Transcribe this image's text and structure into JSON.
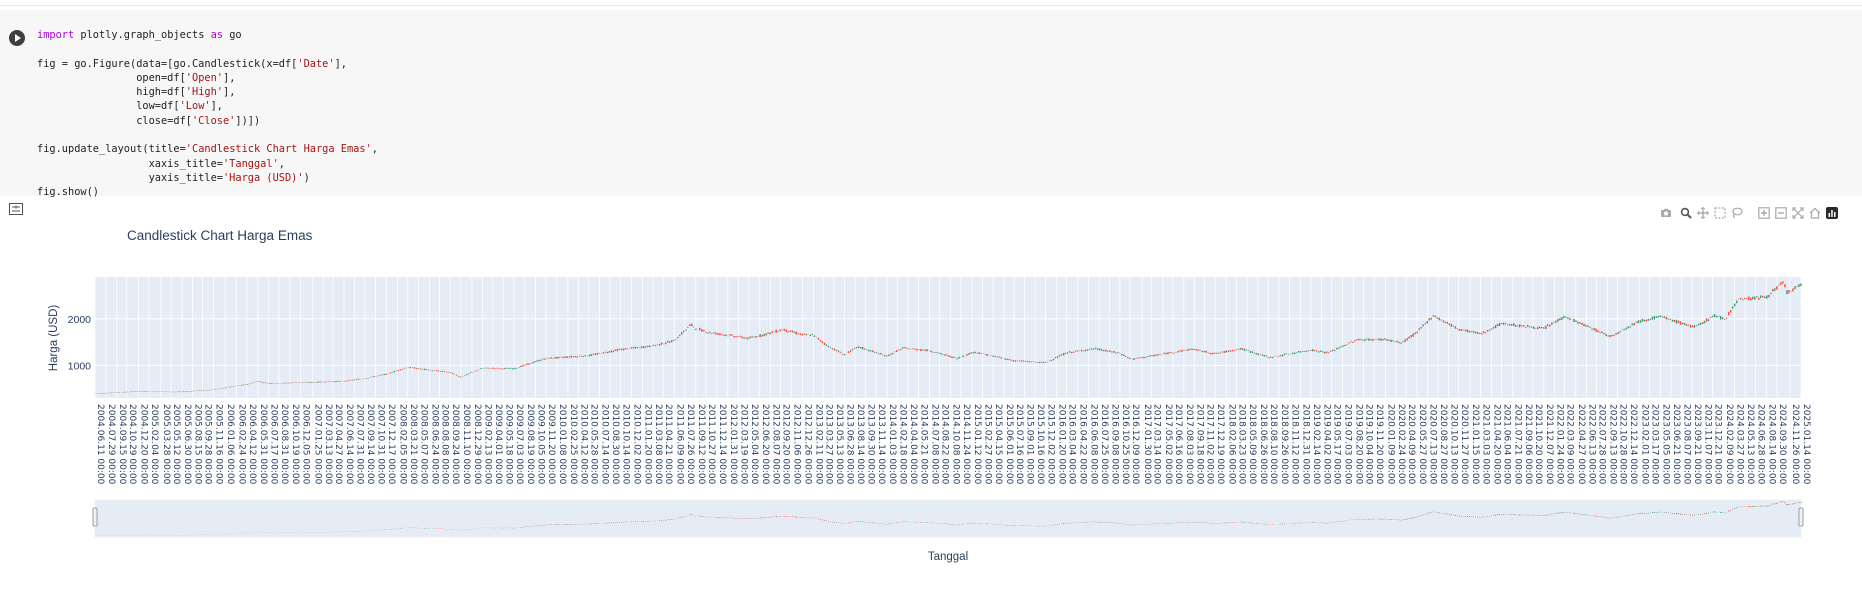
{
  "code": {
    "lines": [
      [
        {
          "t": "import",
          "c": "kw"
        },
        {
          "t": " plotly.graph_objects "
        },
        {
          "t": "as",
          "c": "kw"
        },
        {
          "t": " go"
        }
      ],
      [],
      [
        {
          "t": "fig = go.Figure(data=[go.Candlestick(x=df["
        },
        {
          "t": "'Date'",
          "c": "str"
        },
        {
          "t": "],"
        }
      ],
      [
        {
          "t": "                open=df["
        },
        {
          "t": "'Open'",
          "c": "str"
        },
        {
          "t": "],"
        }
      ],
      [
        {
          "t": "                high=df["
        },
        {
          "t": "'High'",
          "c": "str"
        },
        {
          "t": "],"
        }
      ],
      [
        {
          "t": "                low=df["
        },
        {
          "t": "'Low'",
          "c": "str"
        },
        {
          "t": "],"
        }
      ],
      [
        {
          "t": "                close=df["
        },
        {
          "t": "'Close'",
          "c": "str"
        },
        {
          "t": "])])"
        }
      ],
      [],
      [
        {
          "t": "fig.update_layout(title="
        },
        {
          "t": "'Candlestick Chart Harga Emas'",
          "c": "str"
        },
        {
          "t": ","
        }
      ],
      [
        {
          "t": "                  xaxis_title="
        },
        {
          "t": "'Tanggal'",
          "c": "str"
        },
        {
          "t": ","
        }
      ],
      [
        {
          "t": "                  yaxis_title="
        },
        {
          "t": "'Harga (USD)'",
          "c": "str"
        },
        {
          "t": ")"
        }
      ],
      [
        {
          "t": "fig.show()"
        }
      ]
    ]
  },
  "toolbar": {
    "icons": [
      "camera-icon",
      "zoom-icon",
      "pan-icon",
      "box-select-icon",
      "lasso-select-icon",
      "zoom-in-icon",
      "zoom-out-icon",
      "autoscale-icon",
      "reset-axes-icon",
      "plotly-logo-icon"
    ]
  },
  "chart_data": {
    "type": "candlestick",
    "title": "Candlestick Chart Harga Emas",
    "xlabel": "Tanggal",
    "ylabel": "Harga (USD)",
    "ylim": [
      300,
      2900
    ],
    "yticks": [
      1000,
      2000
    ],
    "x_start": "2004-06-11",
    "x_end": "2025-01-14",
    "ticks": [
      "2004.06.11 00:00",
      "2004.07.29 00:00",
      "2004.09.15 00:00",
      "2004.10.29 00:00",
      "2004.12.20 00:00",
      "2005.02.04 00:00",
      "2005.03.28 00:00",
      "2005.05.12 00:00",
      "2005.06.30 00:00",
      "2005.08.15 00:00",
      "2005.09.28 00:00",
      "2005.11.16 00:00",
      "2006.01.06 00:00",
      "2006.02.24 00:00",
      "2006.04.12 00:00",
      "2006.05.31 00:00",
      "2006.07.17 00:00",
      "2006.08.31 00:00",
      "2006.10.19 00:00",
      "2006.12.05 00:00",
      "2007.01.25 00:00",
      "2007.03.13 00:00",
      "2007.04.27 00:00",
      "2007.06.14 00:00",
      "2007.07.31 00:00",
      "2007.09.14 00:00",
      "2007.10.31 00:00",
      "2007.12.17 00:00",
      "2008.02.05 00:00",
      "2008.03.21 00:00",
      "2008.05.07 00:00",
      "2008.06.24 00:00",
      "2008.08.08 00:00",
      "2008.09.24 00:00",
      "2008.11.10 00:00",
      "2008.12.29 00:00",
      "2009.02.13 00:00",
      "2009.04.01 00:00",
      "2009.05.18 00:00",
      "2009.07.03 00:00",
      "2009.08.19 00:00",
      "2009.10.05 00:00",
      "2009.11.20 00:00",
      "2010.01.08 00:00",
      "2010.02.25 00:00",
      "2010.04.12 00:00",
      "2010.05.28 00:00",
      "2010.07.14 00:00",
      "2010.08.30 00:00",
      "2010.10.14 00:00",
      "2010.12.02 00:00",
      "2011.01.20 00:00",
      "2011.03.08 00:00",
      "2011.04.21 00:00",
      "2011.06.09 00:00",
      "2011.07.26 00:00",
      "2011.09.12 00:00",
      "2011.10.27 00:00",
      "2011.12.14 00:00",
      "2012.01.31 00:00",
      "2012.03.19 00:00",
      "2012.05.04 00:00",
      "2012.06.20 00:00",
      "2012.08.07 00:00",
      "2012.09.20 00:00",
      "2012.11.06 00:00",
      "2012.12.26 00:00",
      "2013.02.11 00:00",
      "2013.03.27 00:00",
      "2013.05.13 00:00",
      "2013.06.28 00:00",
      "2013.08.14 00:00",
      "2013.09.30 00:00",
      "2013.11.14 00:00",
      "2014.01.03 00:00",
      "2014.02.18 00:00",
      "2014.04.04 00:00",
      "2014.05.21 00:00",
      "2014.07.08 00:00",
      "2014.08.22 00:00",
      "2014.10.08 00:00",
      "2014.11.24 00:00",
      "2015.01.12 00:00",
      "2015.02.27 00:00",
      "2015.04.15 00:00",
      "2015.06.01 00:00",
      "2015.07.16 00:00",
      "2015.09.01 00:00",
      "2015.10.16 00:00",
      "2015.12.02 00:00",
      "2016.01.20 00:00",
      "2016.03.04 00:00",
      "2016.04.22 00:00",
      "2016.06.08 00:00",
      "2016.07.25 00:00",
      "2016.09.08 00:00",
      "2016.10.25 00:00",
      "2016.12.09 00:00",
      "2017.01.30 00:00",
      "2017.03.14 00:00",
      "2017.05.02 00:00",
      "2017.06.16 00:00",
      "2017.08.03 00:00",
      "2017.09.18 00:00",
      "2017.11.02 00:00",
      "2017.12.19 00:00",
      "2018.02.06 00:00",
      "2018.03.23 00:00",
      "2018.05.09 00:00",
      "2018.06.26 00:00",
      "2018.08.10 00:00",
      "2018.09.26 00:00",
      "2018.11.12 00:00",
      "2018.12.31 00:00",
      "2019.02.14 00:00",
      "2019.04.02 00:00",
      "2019.05.17 00:00",
      "2019.07.03 00:00",
      "2019.08.20 00:00",
      "2019.10.04 00:00",
      "2019.11.20 00:00",
      "2020.01.09 00:00",
      "2020.02.24 00:00",
      "2020.04.09 00:00",
      "2020.05.27 00:00",
      "2020.07.13 00:00",
      "2020.08.27 00:00",
      "2020.10.13 00:00",
      "2020.11.27 00:00",
      "2021.01.15 00:00",
      "2021.03.03 00:00",
      "2021.04.20 00:00",
      "2021.06.04 00:00",
      "2021.07.21 00:00",
      "2021.09.06 00:00",
      "2021.10.20 00:00",
      "2021.12.07 00:00",
      "2022.01.24 00:00",
      "2022.03.09 00:00",
      "2022.04.27 00:00",
      "2022.06.13 00:00",
      "2022.07.28 00:00",
      "2022.09.13 00:00",
      "2022.10.28 00:00",
      "2022.12.14 00:00",
      "2023.02.01 00:00",
      "2023.03.17 00:00",
      "2023.05.05 00:00",
      "2023.06.21 00:00",
      "2023.08.07 00:00",
      "2023.09.21 00:00",
      "2023.11.07 00:00",
      "2023.12.21 00:00",
      "2024.02.09 00:00",
      "2024.03.27 00:00",
      "2024.05.13 00:00",
      "2024.06.28 00:00",
      "2024.08.14 00:00",
      "2024.09.30 00:00",
      "2024.11.26 00:00",
      "2025.01.14 00:00"
    ],
    "series": [
      {
        "points": [
          [
            "2004-06-11",
            392
          ],
          [
            "2004-12-20",
            440
          ],
          [
            "2005-06-30",
            430
          ],
          [
            "2005-11-16",
            480
          ],
          [
            "2006-04-12",
            590
          ],
          [
            "2006-05-31",
            660
          ],
          [
            "2006-07-17",
            610
          ],
          [
            "2006-12-05",
            630
          ],
          [
            "2007-06-14",
            660
          ],
          [
            "2007-09-14",
            720
          ],
          [
            "2007-12-17",
            810
          ],
          [
            "2008-03-21",
            960
          ],
          [
            "2008-06-24",
            900
          ],
          [
            "2008-09-24",
            850
          ],
          [
            "2008-11-10",
            750
          ],
          [
            "2009-02-13",
            940
          ],
          [
            "2009-07-03",
            930
          ],
          [
            "2009-11-20",
            1150
          ],
          [
            "2010-05-28",
            1210
          ],
          [
            "2010-10-14",
            1340
          ],
          [
            "2011-03-08",
            1420
          ],
          [
            "2011-06-09",
            1530
          ],
          [
            "2011-08-22",
            1880
          ],
          [
            "2011-09-12",
            1800
          ],
          [
            "2011-10-27",
            1720
          ],
          [
            "2012-05-04",
            1580
          ],
          [
            "2012-10-01",
            1770
          ],
          [
            "2012-12-26",
            1660
          ],
          [
            "2013-02-11",
            1650
          ],
          [
            "2013-04-15",
            1420
          ],
          [
            "2013-06-28",
            1230
          ],
          [
            "2013-08-28",
            1400
          ],
          [
            "2013-12-31",
            1200
          ],
          [
            "2014-03-14",
            1370
          ],
          [
            "2014-07-08",
            1320
          ],
          [
            "2014-11-07",
            1150
          ],
          [
            "2015-01-22",
            1290
          ],
          [
            "2015-07-16",
            1100
          ],
          [
            "2015-12-02",
            1060
          ],
          [
            "2016-03-04",
            1270
          ],
          [
            "2016-07-05",
            1360
          ],
          [
            "2016-10-25",
            1260
          ],
          [
            "2016-12-15",
            1130
          ],
          [
            "2017-09-08",
            1350
          ],
          [
            "2017-12-19",
            1250
          ],
          [
            "2018-04-11",
            1360
          ],
          [
            "2018-08-16",
            1170
          ],
          [
            "2019-02-14",
            1330
          ],
          [
            "2019-05-02",
            1270
          ],
          [
            "2019-09-04",
            1550
          ],
          [
            "2020-01-09",
            1560
          ],
          [
            "2020-03-19",
            1480
          ],
          [
            "2020-05-27",
            1710
          ],
          [
            "2020-08-06",
            2070
          ],
          [
            "2020-11-27",
            1780
          ],
          [
            "2021-03-08",
            1680
          ],
          [
            "2021-06-04",
            1900
          ],
          [
            "2021-12-07",
            1790
          ],
          [
            "2022-03-08",
            2050
          ],
          [
            "2022-09-28",
            1620
          ],
          [
            "2023-01-25",
            1940
          ],
          [
            "2023-05-03",
            2050
          ],
          [
            "2023-10-05",
            1820
          ],
          [
            "2023-12-28",
            2070
          ],
          [
            "2024-02-14",
            1990
          ],
          [
            "2024-04-12",
            2420
          ],
          [
            "2024-08-14",
            2470
          ],
          [
            "2024-10-30",
            2790
          ],
          [
            "2024-11-14",
            2560
          ],
          [
            "2025-01-14",
            2720
          ]
        ]
      }
    ],
    "rangeslider": true,
    "grid": true,
    "colors": {
      "increasing": "#3d9970",
      "decreasing": "#ff4136",
      "plot_bg": "#e5ecf6",
      "text": "#2a3f5f"
    }
  }
}
